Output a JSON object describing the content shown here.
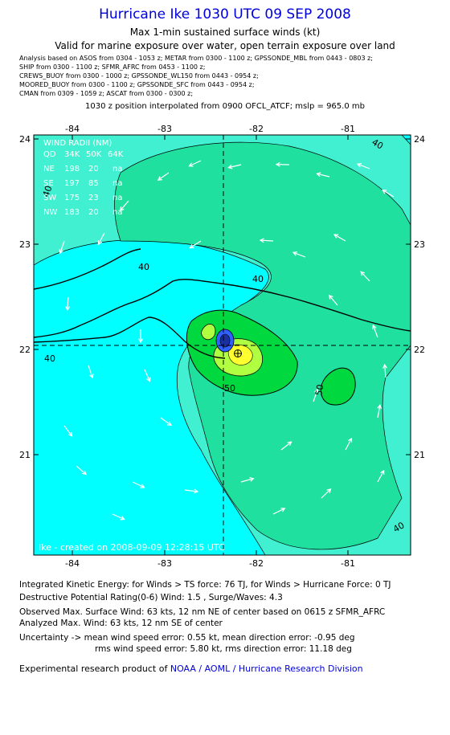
{
  "header": {
    "title": "Hurricane Ike 1030 UTC 09 SEP 2008",
    "subtitle": "Max 1-min sustained surface winds (kt)",
    "valid_line": "Valid for marine exposure over water, open terrain exposure over land",
    "sources": [
      "Analysis based on  ASOS from 0304 - 1053 z;  METAR from 0300 - 1100 z;  GPSSONDE_MBL from 0443 - 0803 z;",
      "SHIP from 0300 - 1100 z;  SFMR_AFRC from 0453 - 1100 z;",
      "CREWS_BUOY from 0300 - 1000 z;  GPSSONDE_WL150 from 0443 - 0954 z;",
      "MOORED_BUOY from 0300 - 1100 z;  GPSSONDE_SFC from 0443 - 0954 z;",
      "CMAN from 0309 - 1059 z;  ASCAT from 0300 - 0300 z;"
    ],
    "position_line": "1030 z position interpolated from 0900 OFCL_ATCF; mslp = 965.0 mb"
  },
  "map": {
    "lon_labels": [
      "-84",
      "-83",
      "-82",
      "-81"
    ],
    "lat_labels": [
      "24",
      "23",
      "22",
      "21"
    ],
    "contour_labels": [
      "40",
      "40",
      "40",
      "40",
      "40",
      "50",
      "50",
      "40"
    ],
    "credit": "Ike - created on 2008-09-09 12:28:15 UTC",
    "colors": {
      "ocean": "#00ffff",
      "low_wind": "#40f0d0",
      "mid_wind": "#20e0a0",
      "green": "#00d840",
      "yellow_green": "#b0ff40",
      "yellow": "#ffff30",
      "core_blue": "#3060ff"
    },
    "wind_radii": {
      "title": "WIND RADII (NM)",
      "header": [
        "QD",
        "34K",
        "50K",
        "64K"
      ],
      "rows": [
        [
          "NE",
          "198",
          "20",
          "na"
        ],
        [
          "SE",
          "197",
          "85",
          "na"
        ],
        [
          "SW",
          "175",
          "23",
          "na"
        ],
        [
          "NW",
          "183",
          "20",
          "na"
        ]
      ]
    }
  },
  "footer": {
    "ike": "Integrated Kinetic Energy: for Winds > TS force: 76 TJ, for Winds > Hurricane Force: 0 TJ",
    "dpr": "Destructive Potential Rating(0-6)   Wind: 1.5 , Surge/Waves: 4.3",
    "observed": "Observed Max. Surface Wind: 63 kts, 12 nm NE of center based on 0615 z SFMR_AFRC",
    "analyzed": "Analyzed Max. Wind: 63 kts, 12 nm SE of center",
    "uncertainty1": "Uncertainty -> mean wind speed error: 0.55 kt,   mean direction error:  -0.95 deg",
    "uncertainty2": "rms wind speed error: 5.80 kt,   rms direction error: 11.18 deg",
    "product_prefix": "Experimental research product of",
    "product_org": "NOAA / AOML / Hurricane Research Division"
  }
}
